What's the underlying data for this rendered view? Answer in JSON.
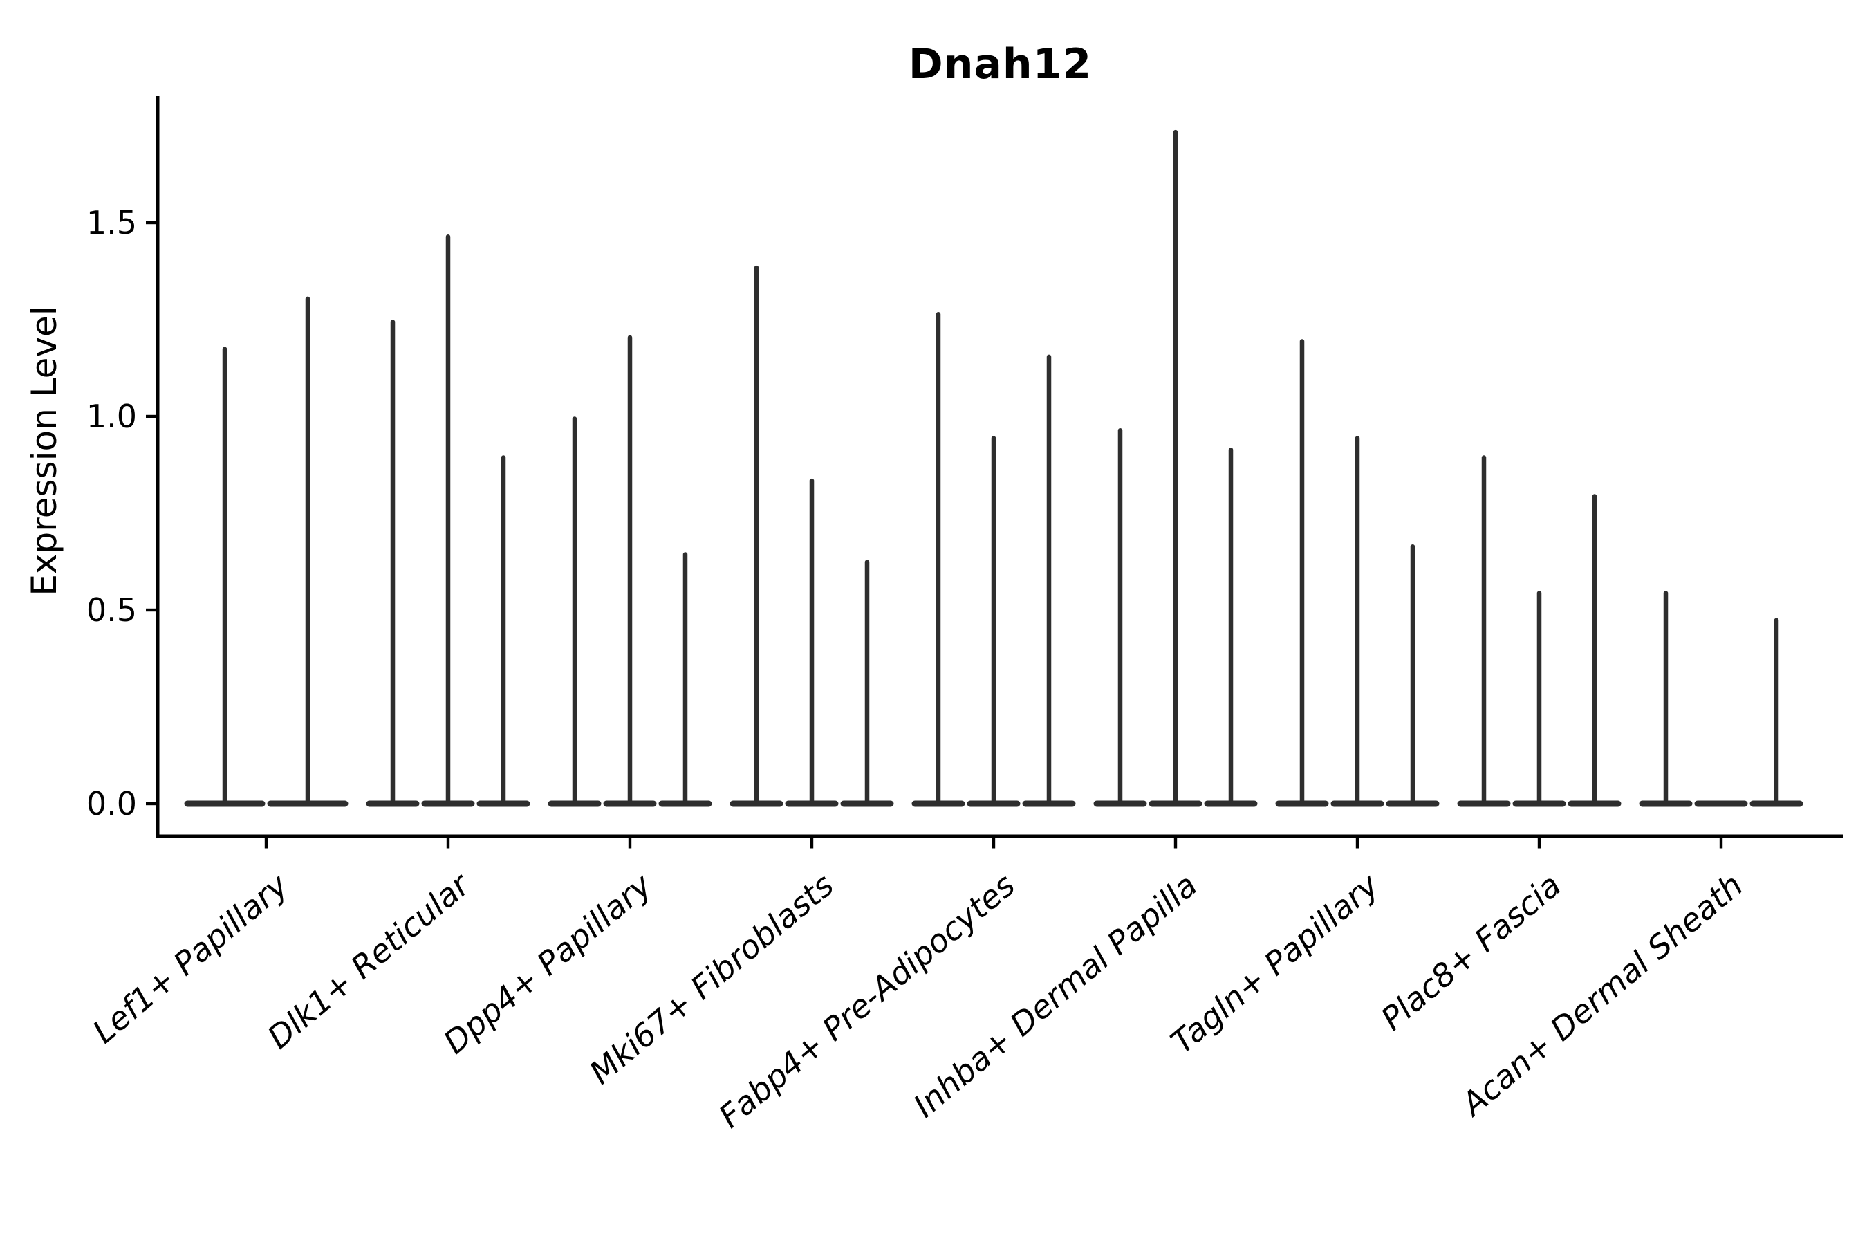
{
  "chart_data": {
    "type": "violin",
    "title": "Dnah12",
    "ylabel": "Expression Level",
    "xlabel": "",
    "ytick_labels": [
      "0.0",
      "0.5",
      "1.0",
      "1.5"
    ],
    "ytick_values": [
      0.0,
      0.5,
      1.0,
      1.5
    ],
    "ylim": [
      -0.084,
      1.82
    ],
    "grid": false,
    "legend": "none",
    "x_label_rotation_deg": 40,
    "categories": [
      "Lef1+ Papillary",
      "Dlk1+ Reticular",
      "Dpp4+ Papillary",
      "Mki67+ Fibroblasts",
      "Fabp4+ Pre-Adipocytes",
      "Inhba+ Dermal Papilla",
      "Tagln+ Papillary",
      "Plac8+ Fascia",
      "Acan+ Dermal Sheath"
    ],
    "groups": [
      {
        "label": "Lef1+ Papillary",
        "violin_max_expression": [
          1.18,
          1.31
        ]
      },
      {
        "label": "Dlk1+ Reticular",
        "violin_max_expression": [
          1.25,
          1.47,
          0.9
        ]
      },
      {
        "label": "Dpp4+ Papillary",
        "violin_max_expression": [
          1.0,
          1.21,
          0.65
        ]
      },
      {
        "label": "Mki67+ Fibroblasts",
        "violin_max_expression": [
          1.39,
          0.84,
          0.63
        ]
      },
      {
        "label": "Fabp4+ Pre-Adipocytes",
        "violin_max_expression": [
          1.27,
          0.95,
          1.16
        ]
      },
      {
        "label": "Inhba+ Dermal Papilla",
        "violin_max_expression": [
          0.97,
          1.74,
          0.92
        ]
      },
      {
        "label": "Tagln+ Papillary",
        "violin_max_expression": [
          1.2,
          0.95,
          0.67
        ]
      },
      {
        "label": "Plac8+ Fascia",
        "violin_max_expression": [
          0.9,
          0.55,
          0.8
        ]
      },
      {
        "label": "Acan+ Dermal Sheath",
        "violin_max_expression": [
          0.55,
          0.0,
          0.48
        ]
      }
    ],
    "colors": {
      "violin": "#2e2e2e",
      "axis": "#000000",
      "text": "#000000",
      "background": "#ffffff"
    }
  }
}
